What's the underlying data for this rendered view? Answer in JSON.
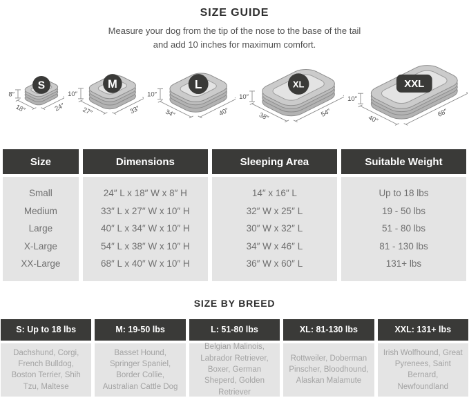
{
  "header": {
    "title": "SIZE GUIDE",
    "subtitle_line1": "Measure your dog from the tip of the nose to the base of the tail",
    "subtitle_line2": "and add 10 inches for maximum comfort."
  },
  "beds": [
    {
      "badge": "S",
      "height_label": "8″",
      "width_label": "18″",
      "length_label": "24″"
    },
    {
      "badge": "M",
      "height_label": "10″",
      "width_label": "27″",
      "length_label": "33″"
    },
    {
      "badge": "L",
      "height_label": "10″",
      "width_label": "34″",
      "length_label": "40″"
    },
    {
      "badge": "XL",
      "height_label": "10″",
      "width_label": "38″",
      "length_label": "54″"
    },
    {
      "badge": "XXL",
      "height_label": "10″",
      "width_label": "40″",
      "length_label": "68″"
    }
  ],
  "size_table": {
    "columns": [
      "Size",
      "Dimensions",
      "Sleeping Area",
      "Suitable Weight"
    ],
    "rows": [
      [
        "Small",
        "24″ L x 18″ W x 8″ H",
        "14″ x 16″ L",
        "Up to 18 lbs"
      ],
      [
        "Medium",
        "33″ L x 27″ W x 10″ H",
        "32″ W x 25″ L",
        "19 - 50 lbs"
      ],
      [
        "Large",
        "40″ L x 34″ W x 10″ H",
        "30″ W x 32″ L",
        "51 - 80 lbs"
      ],
      [
        "X-Large",
        "54″ L x 38″ W x 10″ H",
        "34″ W x 46″ L",
        "81 - 130 lbs"
      ],
      [
        "XX-Large",
        "68″ L x 40″ W x 10″ H",
        "36″ W x 60″ L",
        "131+ lbs"
      ]
    ]
  },
  "breed_section": {
    "title": "SIZE BY BREED",
    "columns": [
      {
        "header": "S: Up to 18 lbs",
        "breeds": "Dachshund, Corgi, French Bulldog, Boston Terrier, Shih Tzu, Maltese"
      },
      {
        "header": "M: 19-50 lbs",
        "breeds": "Basset Hound, Springer Spaniel, Border Collie, Australian Cattle Dog"
      },
      {
        "header": "L: 51-80 lbs",
        "breeds": "Belgian Malinois, Labrador Retriever, Boxer, German Sheperd, Golden Retriever"
      },
      {
        "header": "XL: 81-130 lbs",
        "breeds": "Rottweiler, Doberman Pinscher, Bloodhound, Alaskan Malamute"
      },
      {
        "header": "XXL: 131+ lbs",
        "breeds": "Irish Wolfhound, Great Pyrenees, Saint Bernard, Newfoundland"
      }
    ]
  },
  "colors": {
    "dark": "#3a3a38",
    "cell_bg": "#e4e4e4",
    "table_text": "#6f6f6f",
    "breed_text": "#a3a3a3",
    "title_text": "#2d2d2d",
    "subtitle_text": "#4f4f4f",
    "header_text": "#ffffff",
    "bed_rim": "#cbcbcb",
    "bed_side": "#b3b3b3",
    "bed_side_light": "#bdbdbd",
    "bed_inner": "#e3e3e3",
    "bed_stroke": "#8c8c8c",
    "bed_inner_stroke": "#9c9c9c",
    "dim_line": "#8a8a8a",
    "dim_text": "#4f4f4f"
  }
}
